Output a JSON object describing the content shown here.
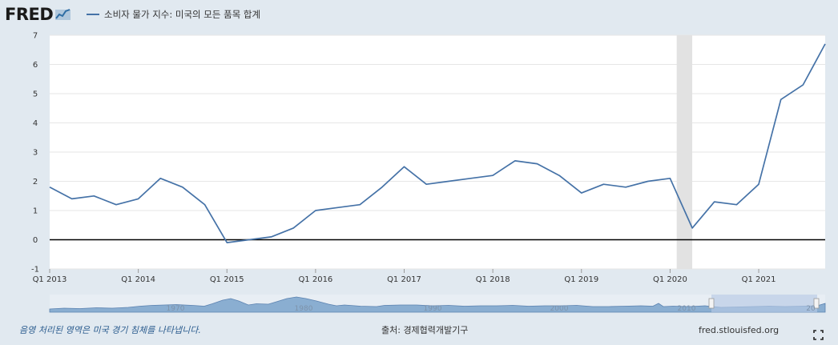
{
  "header": {
    "logo_text": "FRED",
    "legend_label": "소비자 물가 지수: 미국의 모든 품목 합계",
    "series_color": "#4572a7"
  },
  "footer": {
    "recession_note": "음영 처리된 영역은 미국 경기 침체를 나타냅니다.",
    "source": "출처: 경제협력개발기구",
    "site": "fred.stlouisfed.org",
    "fullscreen_icon": "fullscreen-icon"
  },
  "navigator": {
    "year_labels": [
      "1970",
      "1980",
      "1990",
      "2000",
      "2010",
      "20"
    ]
  },
  "chart_data": {
    "type": "line",
    "y_ticks": [
      7,
      6,
      5,
      4,
      3,
      2,
      1,
      0,
      -1
    ],
    "ylim": [
      -1,
      7
    ],
    "x_tick_labels": [
      "Q1 2013",
      "Q1 2014",
      "Q1 2015",
      "Q1 2016",
      "Q1 2017",
      "Q1 2018",
      "Q1 2019",
      "Q1 2020",
      "Q1 2021"
    ],
    "x_tick_quarter_index": [
      0,
      4,
      8,
      12,
      16,
      20,
      24,
      28,
      32
    ],
    "recession_quarter_range": [
      28.3,
      29.0
    ],
    "series": [
      {
        "color": "#4572a7",
        "quarter_index": [
          0,
          1,
          2,
          3,
          4,
          5,
          6,
          7,
          8,
          9,
          10,
          11,
          12,
          13,
          14,
          15,
          16,
          17,
          18,
          19,
          20,
          21,
          22,
          23,
          24,
          25,
          26,
          27,
          28,
          29,
          30,
          31,
          32,
          33,
          34,
          35
        ],
        "values": [
          1.8,
          1.4,
          1.5,
          1.2,
          1.4,
          2.1,
          1.8,
          1.2,
          -0.1,
          0.0,
          0.1,
          0.4,
          1.0,
          1.1,
          1.2,
          1.8,
          2.5,
          1.9,
          2.0,
          2.1,
          2.2,
          2.7,
          2.6,
          2.2,
          1.6,
          1.9,
          1.8,
          2.0,
          2.1,
          0.4,
          1.3,
          1.2,
          1.9,
          4.8,
          5.3,
          6.7
        ]
      }
    ]
  }
}
